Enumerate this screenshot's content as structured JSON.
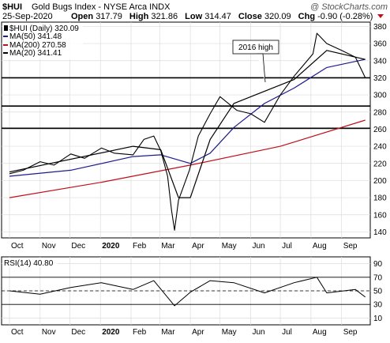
{
  "header": {
    "symbol": "$HUI",
    "name": "Gold Bugs Index - NYSE Arca  INDX",
    "copyright": "@ StockCharts.com",
    "date": "25-Sep-2020",
    "open_label": "Open",
    "open": "317.79",
    "high_label": "High",
    "high": "321.86",
    "low_label": "Low",
    "low": "314.47",
    "close_label": "Close",
    "close": "320.09",
    "chg_label": "Chg",
    "chg": "-0.90 (-0.28%)"
  },
  "legend": {
    "main": "$HUI (Daily) 320.09",
    "ma50": "MA(50) 341.48",
    "ma200": "MA(200) 270.58",
    "ma20": "MA(20) 341.41"
  },
  "annotation": "2016 high",
  "rsi_legend": "RSI(14) 40.80",
  "colors": {
    "price": "#000000",
    "ma50": "#1c1c8c",
    "ma200": "#c0101a",
    "ma20": "#000000",
    "hline": "#000000",
    "grid": "#dcdcdc",
    "arrow_down": "#c0101a"
  },
  "chart_data": [
    {
      "type": "line",
      "title": "$HUI (Daily)",
      "x_ticks": [
        "Oct",
        "Nov",
        "Dec",
        "2020",
        "Feb",
        "Mar",
        "Apr",
        "May",
        "Jun",
        "Jul",
        "Aug",
        "Sep"
      ],
      "y_ticks": [
        140,
        160,
        180,
        200,
        220,
        240,
        260,
        280,
        300,
        320,
        340,
        360,
        380
      ],
      "ylim": [
        133,
        385
      ],
      "grid": true,
      "legend_position": "top-left",
      "horizontal_lines": [
        320,
        287,
        261
      ],
      "series": [
        {
          "name": "$HUI (Daily)",
          "x": [
            "2019-10-01",
            "2019-10-15",
            "2019-11-01",
            "2019-11-15",
            "2019-12-02",
            "2019-12-16",
            "2020-01-02",
            "2020-01-15",
            "2020-02-03",
            "2020-02-14",
            "2020-02-24",
            "2020-03-02",
            "2020-03-09",
            "2020-03-13",
            "2020-03-16",
            "2020-03-20",
            "2020-03-31",
            "2020-04-09",
            "2020-04-21",
            "2020-05-01",
            "2020-05-18",
            "2020-06-01",
            "2020-06-15",
            "2020-07-01",
            "2020-07-15",
            "2020-08-03",
            "2020-08-07",
            "2020-08-17",
            "2020-09-01",
            "2020-09-15",
            "2020-09-25"
          ],
          "values": [
            208,
            212,
            222,
            218,
            231,
            226,
            238,
            232,
            230,
            248,
            252,
            235,
            205,
            165,
            142,
            177,
            212,
            252,
            278,
            298,
            282,
            278,
            268,
            300,
            322,
            348,
            372,
            360,
            352,
            344,
            320
          ]
        },
        {
          "name": "MA(50)",
          "x": [
            "2019-10-01",
            "2019-12-02",
            "2020-02-03",
            "2020-03-02",
            "2020-04-01",
            "2020-04-21",
            "2020-05-15",
            "2020-06-15",
            "2020-07-15",
            "2020-08-17",
            "2020-09-25"
          ],
          "values": [
            205,
            212,
            228,
            230,
            220,
            232,
            262,
            290,
            308,
            332,
            341.48
          ]
        },
        {
          "name": "MA(200)",
          "x": [
            "2019-10-01",
            "2020-01-02",
            "2020-04-01",
            "2020-07-01",
            "2020-09-25"
          ],
          "values": [
            180,
            198,
            218,
            240,
            270.58
          ]
        },
        {
          "name": "MA(20)",
          "x": [
            "2019-10-01",
            "2020-02-03",
            "2020-03-02",
            "2020-03-20",
            "2020-04-01",
            "2020-04-21",
            "2020-05-15",
            "2020-07-15",
            "2020-08-17",
            "2020-09-25"
          ],
          "values": [
            210,
            240,
            236,
            180,
            180,
            248,
            290,
            318,
            352,
            341.41
          ]
        }
      ]
    },
    {
      "type": "line",
      "title": "RSI(14)",
      "x_ticks": [
        "Oct",
        "Nov",
        "Dec",
        "2020",
        "Feb",
        "Mar",
        "Apr",
        "May",
        "Jun",
        "Jul",
        "Aug",
        "Sep"
      ],
      "y_ticks": [
        10,
        30,
        50,
        70,
        90
      ],
      "ylim": [
        0,
        100
      ],
      "reference_lines": [
        30,
        50,
        70
      ],
      "series": [
        {
          "name": "RSI(14)",
          "x": [
            "2019-10-01",
            "2019-11-01",
            "2019-12-02",
            "2020-01-02",
            "2020-02-03",
            "2020-02-24",
            "2020-03-16",
            "2020-04-01",
            "2020-04-21",
            "2020-05-15",
            "2020-06-15",
            "2020-07-15",
            "2020-08-07",
            "2020-08-17",
            "2020-09-15",
            "2020-09-25"
          ],
          "values": [
            50,
            45,
            55,
            62,
            52,
            65,
            28,
            48,
            65,
            62,
            47,
            62,
            70,
            47,
            52,
            40.8
          ]
        }
      ]
    }
  ]
}
